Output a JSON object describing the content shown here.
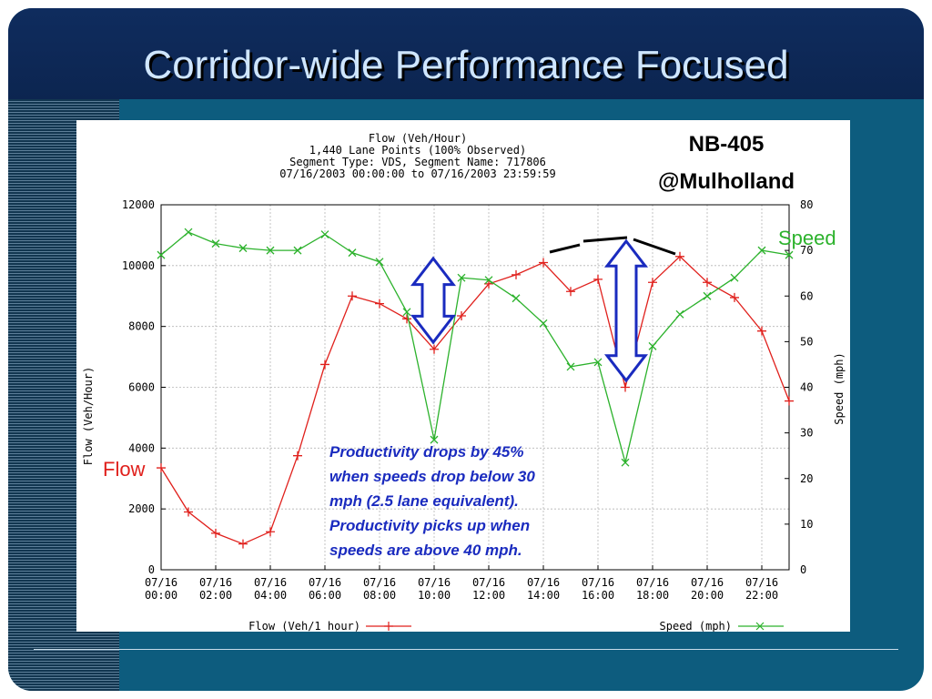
{
  "slide": {
    "title": "Corridor-wide Performance Focused",
    "location_line1": "NB-405",
    "location_line2": "@Mulholland",
    "series_label_speed": "Speed",
    "series_label_flow": "Flow",
    "annotation_lines": [
      "Productivity drops by 45%",
      "when speeds drop below 30",
      "mph (2.5 lane equivalent).",
      "Productivity picks up when",
      "speeds are above 40 mph."
    ],
    "colors": {
      "frame": "#0d5c7e",
      "title_bar": "#0f2c5e",
      "title_text": "#cfe6ff",
      "flow": "#e0201c",
      "speed": "#2cb22c",
      "annotation": "#1a2bbf",
      "arrow_fill": "#ffffff",
      "arrow_stroke": "#1a2bbf"
    }
  },
  "chart_data": {
    "type": "line",
    "title": "Flow (Veh/Hour)",
    "subtitle_lines": [
      "1,440 Lane Points (100% Observed)",
      "Segment Type: VDS, Segment Name: 717806",
      "07/16/2003 00:00:00 to 07/16/2003 23:59:59"
    ],
    "xlabel": "",
    "ylabel": "Flow (Veh/Hour)",
    "y2label": "Speed (mph)",
    "xlim": [
      0,
      23
    ],
    "ylim": [
      0,
      12000
    ],
    "y2lim": [
      0,
      80
    ],
    "grid": true,
    "legend": "bottom",
    "x_ticks": [
      {
        "x": 0,
        "date": "07/16",
        "time": "00:00"
      },
      {
        "x": 2,
        "date": "07/16",
        "time": "02:00"
      },
      {
        "x": 4,
        "date": "07/16",
        "time": "04:00"
      },
      {
        "x": 6,
        "date": "07/16",
        "time": "06:00"
      },
      {
        "x": 8,
        "date": "07/16",
        "time": "08:00"
      },
      {
        "x": 10,
        "date": "07/16",
        "time": "10:00"
      },
      {
        "x": 12,
        "date": "07/16",
        "time": "12:00"
      },
      {
        "x": 14,
        "date": "07/16",
        "time": "14:00"
      },
      {
        "x": 16,
        "date": "07/16",
        "time": "16:00"
      },
      {
        "x": 18,
        "date": "07/16",
        "time": "18:00"
      },
      {
        "x": 20,
        "date": "07/16",
        "time": "20:00"
      },
      {
        "x": 22,
        "date": "07/16",
        "time": "22:00"
      }
    ],
    "y_ticks": [
      "0",
      "2000",
      "4000",
      "6000",
      "8000",
      "10000",
      "12000"
    ],
    "y2_ticks": [
      "0",
      "10",
      "20",
      "30",
      "40",
      "50",
      "60",
      "70",
      "80"
    ],
    "x": [
      0,
      1,
      2,
      3,
      4,
      5,
      6,
      7,
      8,
      9,
      10,
      11,
      12,
      13,
      14,
      15,
      16,
      17,
      18,
      19,
      20,
      21,
      22,
      23
    ],
    "series": [
      {
        "name": "Flow (Veh/1 hour)",
        "axis": "left",
        "values": [
          3350,
          1900,
          1200,
          850,
          1250,
          3750,
          6750,
          9000,
          8750,
          8250,
          7250,
          8350,
          9400,
          9700,
          10100,
          9150,
          9550,
          6000,
          9450,
          10300,
          9450,
          8950,
          7850,
          5550
        ]
      },
      {
        "name": "Speed (mph)",
        "axis": "right",
        "values": [
          69,
          74,
          71.5,
          70.5,
          70,
          70,
          73.5,
          69.5,
          67.5,
          56.5,
          28.5,
          64,
          63.5,
          59.5,
          54,
          44.5,
          45.5,
          23.5,
          49,
          56,
          60,
          64,
          70,
          69
        ]
      }
    ]
  }
}
